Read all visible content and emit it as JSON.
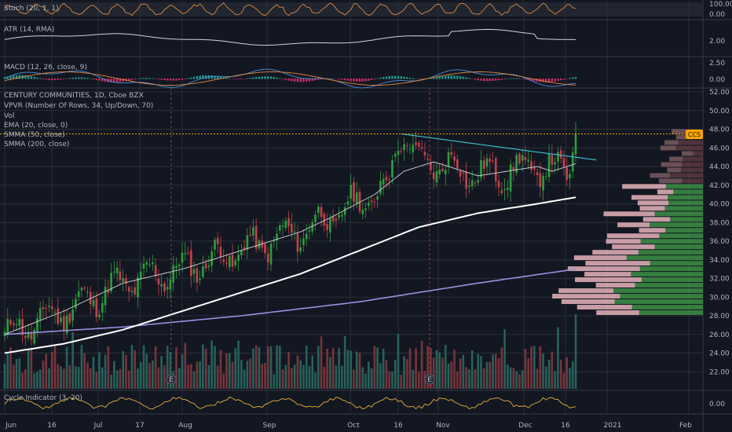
{
  "symbol_header": "CENTURY COMMUNITIES, 1D, Cboe BZX",
  "ticker_badge": "CCS",
  "indicators": {
    "stoch": "Stoch (20, 1, 1)",
    "atr": "ATR (14, RMA)",
    "macd": "MACD (12, 26, close, 9)",
    "vpvr": "VPVR (Number Of Rows, 34, Up/Down, 70)",
    "vol": "Vol",
    "ema": "EMA (20, close, 0)",
    "smma50": "SMMA (50, close)",
    "smma200": "SMMA (200, close)",
    "cycle": "Cycle Indicator (3, 20)"
  },
  "colors": {
    "background": "#131722",
    "up": "#26a69a",
    "up_candle": "#2e9e3f",
    "down": "#c2424b",
    "ema": "#d1d4dc",
    "smma50": "#ffffff",
    "smma200": "#9c8fdf",
    "trendline": "#3ec1d3",
    "badge": "#f7a600",
    "price_line": "#f7a600",
    "vpvr_up": "#3d8f44",
    "vpvr_down": "#e8b4bc",
    "grid": "#2a2e39"
  },
  "earnings_marker": "E",
  "chart_data": [
    {
      "type": "line",
      "name": "Stoch",
      "ylim": [
        0,
        100
      ],
      "yticks": [
        "100.00",
        "0.00"
      ]
    },
    {
      "type": "line",
      "name": "ATR",
      "yticks": [
        "2.00"
      ]
    },
    {
      "type": "bar",
      "name": "MACD",
      "yticks": [
        "2.50",
        "0.00"
      ]
    },
    {
      "type": "line",
      "name": "Price",
      "ylim": [
        20,
        52
      ],
      "yticks": [
        "52.00",
        "50.00",
        "48.00",
        "46.00",
        "44.00",
        "42.00",
        "40.00",
        "38.00",
        "36.00",
        "34.00",
        "32.00",
        "30.00",
        "28.00",
        "26.00",
        "24.00",
        "22.00"
      ],
      "xticks": [
        "Jun",
        "16",
        "Jul",
        "17",
        "Aug",
        "Sep",
        "Oct",
        "16",
        "Nov",
        "Dec",
        "16",
        "2021",
        "Feb"
      ],
      "last_close": 47.5,
      "ema20": [
        [
          0,
          26.0
        ],
        [
          20,
          28.5
        ],
        [
          40,
          31.5
        ],
        [
          60,
          33.0
        ],
        [
          80,
          35.0
        ],
        [
          100,
          37.0
        ],
        [
          110,
          38.5
        ],
        [
          125,
          41.0
        ],
        [
          135,
          43.5
        ],
        [
          145,
          44.5
        ],
        [
          155,
          43.5
        ],
        [
          160,
          43.0
        ],
        [
          170,
          43.5
        ],
        [
          180,
          44.0
        ],
        [
          185,
          43.5
        ],
        [
          193,
          44.3
        ]
      ],
      "smma50": [
        [
          0,
          24.0
        ],
        [
          20,
          25.0
        ],
        [
          40,
          26.5
        ],
        [
          60,
          28.5
        ],
        [
          80,
          30.5
        ],
        [
          100,
          32.5
        ],
        [
          120,
          35.0
        ],
        [
          140,
          37.5
        ],
        [
          160,
          39.0
        ],
        [
          180,
          40.0
        ],
        [
          193,
          40.7
        ]
      ],
      "smma200": [
        [
          0,
          26.0
        ],
        [
          40,
          26.8
        ],
        [
          80,
          28.0
        ],
        [
          120,
          29.5
        ],
        [
          160,
          31.5
        ],
        [
          193,
          33.0
        ]
      ],
      "trendline": [
        [
          134,
          47.5
        ],
        [
          200,
          44.7
        ]
      ]
    },
    {
      "type": "line",
      "name": "Cycle",
      "yticks": [
        "0.00"
      ]
    }
  ]
}
